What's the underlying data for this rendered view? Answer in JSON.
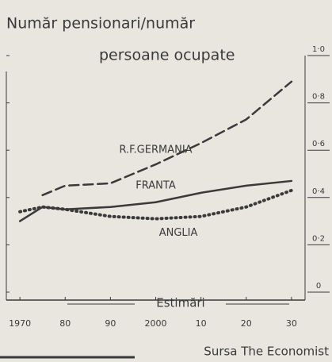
{
  "chart_data": {
    "type": "line",
    "title": [
      "Număr pensionari/număr",
      "persoane ocupate"
    ],
    "x": [
      1970,
      1975,
      1980,
      1990,
      2000,
      2010,
      2020,
      2030
    ],
    "series": [
      {
        "name": "R.F.GERMANIA",
        "color": "#3a3a3a",
        "style": "dashed",
        "values": [
          null,
          0.41,
          0.45,
          0.46,
          0.54,
          0.63,
          0.73,
          0.89
        ]
      },
      {
        "name": "FRANTA",
        "color": "#3a3a3a",
        "style": "solid",
        "values": [
          0.3,
          0.36,
          0.35,
          0.36,
          0.38,
          0.42,
          0.45,
          0.47
        ]
      },
      {
        "name": "ANGLIA",
        "color": "#3a3a3a",
        "style": "dotted",
        "values": [
          0.34,
          0.36,
          0.35,
          0.32,
          0.31,
          0.32,
          0.36,
          0.43
        ]
      }
    ],
    "xlim": [
      1967,
      2033
    ],
    "xticks": [
      {
        "value": 1970,
        "label": "1970"
      },
      {
        "value": 1980,
        "label": "80"
      },
      {
        "value": 1990,
        "label": "90"
      },
      2000,
      {
        "value": 2010,
        "label": "10"
      },
      {
        "value": 2020,
        "label": "20"
      },
      {
        "value": 2030,
        "label": "30"
      }
    ],
    "ylim": [
      0,
      1.0
    ],
    "yticks": [
      0,
      {
        "value": 0.2,
        "label": "0·2"
      },
      {
        "value": 0.4,
        "label": "0·4"
      },
      {
        "value": 0.6,
        "label": "0·6"
      },
      {
        "value": 0.8,
        "label": "0·8"
      },
      {
        "value": 1.0,
        "label": "1·0"
      }
    ],
    "annotations": [
      "Estimări",
      "Sursa The Economist"
    ]
  }
}
